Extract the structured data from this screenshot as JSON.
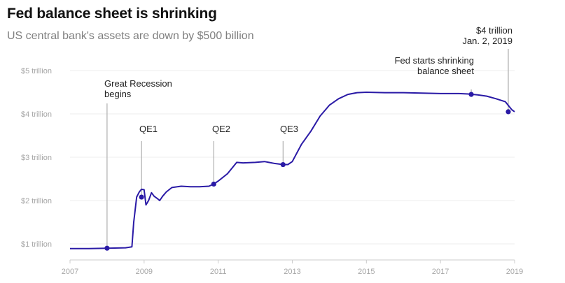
{
  "title": "Fed balance sheet is shrinking",
  "subtitle": "US central bank's assets are down by $500 billion",
  "colors": {
    "line": "#2a1aa6",
    "grid": "#eeeeee",
    "callout": "#9e9e9e",
    "axis": "#a6a6a6"
  },
  "chart_data": {
    "type": "line",
    "title": "Fed balance sheet is shrinking",
    "subtitle": "US central bank's assets are down by $500 billion",
    "xlabel": "",
    "ylabel": "",
    "xlim": [
      2007.0,
      2019.0
    ],
    "ylim": [
      0.75,
      5.2
    ],
    "grid": true,
    "y_ticks": [
      {
        "value": 1,
        "label": "$1 trillion"
      },
      {
        "value": 2,
        "label": "$2 trillion"
      },
      {
        "value": 3,
        "label": "$3 trillion"
      },
      {
        "value": 4,
        "label": "$4 trillion"
      },
      {
        "value": 5,
        "label": "$5 trillion"
      }
    ],
    "x_ticks": [
      {
        "value": 2007,
        "label": "2007"
      },
      {
        "value": 2009,
        "label": "2009"
      },
      {
        "value": 2011,
        "label": "2011"
      },
      {
        "value": 2013,
        "label": "2013"
      },
      {
        "value": 2015,
        "label": "2015"
      },
      {
        "value": 2017,
        "label": "2017"
      },
      {
        "value": 2019,
        "label": "2019"
      }
    ],
    "series": [
      {
        "x": [
          2007.0,
          2007.5,
          2008.0,
          2008.5,
          2008.67,
          2008.72,
          2008.8,
          2008.87,
          2008.93,
          2009.0,
          2009.05,
          2009.12,
          2009.2,
          2009.27,
          2009.35,
          2009.42,
          2009.5,
          2009.6,
          2009.75,
          2010.0,
          2010.25,
          2010.5,
          2010.75,
          2010.88,
          2011.0,
          2011.25,
          2011.5,
          2011.67,
          2012.0,
          2012.25,
          2012.5,
          2012.75,
          2012.88,
          2013.0,
          2013.25,
          2013.5,
          2013.75,
          2014.0,
          2014.25,
          2014.5,
          2014.75,
          2015.0,
          2015.5,
          2016.0,
          2016.5,
          2017.0,
          2017.5,
          2017.75,
          2018.0,
          2018.25,
          2018.5,
          2018.75,
          2018.92,
          2019.0
        ],
        "y": [
          0.89,
          0.89,
          0.9,
          0.91,
          0.93,
          1.5,
          2.08,
          2.2,
          2.26,
          2.25,
          1.9,
          2.0,
          2.18,
          2.1,
          2.05,
          2.0,
          2.1,
          2.2,
          2.3,
          2.33,
          2.32,
          2.32,
          2.33,
          2.38,
          2.45,
          2.62,
          2.88,
          2.87,
          2.88,
          2.9,
          2.86,
          2.83,
          2.83,
          2.9,
          3.3,
          3.6,
          3.95,
          4.2,
          4.35,
          4.45,
          4.49,
          4.5,
          4.49,
          4.49,
          4.48,
          4.47,
          4.47,
          4.46,
          4.44,
          4.41,
          4.35,
          4.28,
          4.1,
          4.05
        ]
      }
    ],
    "markers": [
      {
        "x": 2008.0,
        "y": 0.9
      },
      {
        "x": 2008.93,
        "y": 2.08
      },
      {
        "x": 2010.88,
        "y": 2.38
      },
      {
        "x": 2012.75,
        "y": 2.83
      },
      {
        "x": 2017.83,
        "y": 4.45
      },
      {
        "x": 2018.83,
        "y": 4.05
      }
    ],
    "annotations": [
      {
        "text": "Great Recession\nbegins",
        "x": 2008.0,
        "y": 0.9
      },
      {
        "text": "QE1",
        "x": 2008.93,
        "y": 2.08
      },
      {
        "text": "QE2",
        "x": 2010.88,
        "y": 2.38
      },
      {
        "text": "QE3",
        "x": 2012.75,
        "y": 2.83
      },
      {
        "text": "Fed starts shrinking\nbalance sheet",
        "x": 2017.83,
        "y": 4.45
      },
      {
        "text": "$4 trillion\nJan. 2, 2019",
        "x": 2018.83,
        "y": 4.05
      }
    ]
  }
}
